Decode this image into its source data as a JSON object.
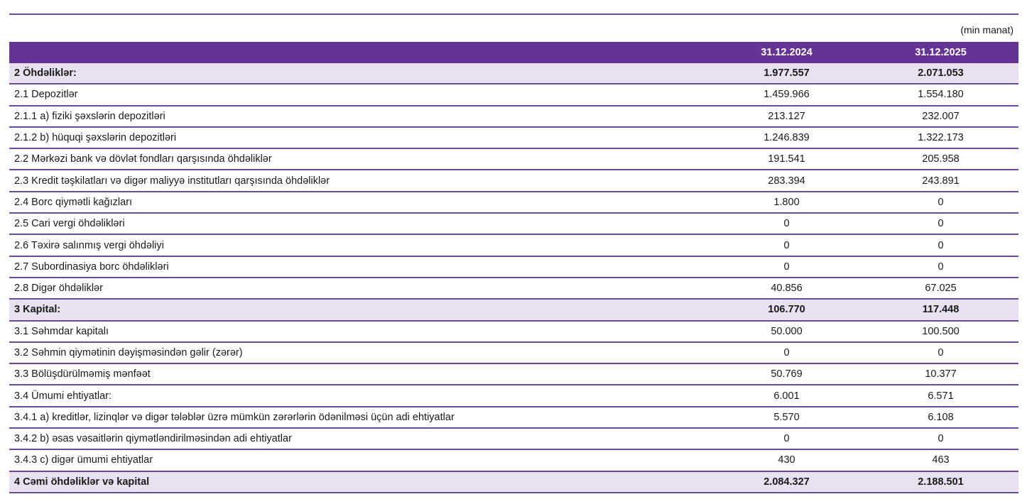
{
  "unit_label": "(min manat)",
  "columns": [
    "",
    "31.12.2024",
    "31.12.2025"
  ],
  "rows": [
    {
      "label": "2 Öhdəliklər:",
      "v2024": "1.977.557",
      "v2025": "2.071.053",
      "bold": true
    },
    {
      "label": "2.1 Depozitlər",
      "v2024": "1.459.966",
      "v2025": "1.554.180"
    },
    {
      "label": "2.1.1 a) fiziki şəxslərin depozitləri",
      "v2024": "213.127",
      "v2025": "232.007"
    },
    {
      "label": "2.1.2 b) hüquqi şəxslərin depozitləri",
      "v2024": "1.246.839",
      "v2025": "1.322.173"
    },
    {
      "label": "2.2 Mərkəzi bank və dövlət fondları qarşısında öhdəliklər",
      "v2024": "191.541",
      "v2025": "205.958"
    },
    {
      "label": "2.3 Kredit təşkilatları və digər maliyyə institutları qarşısında öhdəliklər",
      "v2024": "283.394",
      "v2025": "243.891"
    },
    {
      "label": "2.4 Borc qiymətli kağızları",
      "v2024": "1.800",
      "v2025": "0"
    },
    {
      "label": "2.5 Cari vergi öhdəlikləri",
      "v2024": "0",
      "v2025": "0"
    },
    {
      "label": "2.6 Təxirə salınmış vergi öhdəliyi",
      "v2024": "0",
      "v2025": "0"
    },
    {
      "label": "2.7 Subordinasiya borc öhdəlikləri",
      "v2024": "0",
      "v2025": "0"
    },
    {
      "label": "2.8 Digər öhdəliklər",
      "v2024": "40.856",
      "v2025": "67.025"
    },
    {
      "label": "3 Kapital:",
      "v2024": "106.770",
      "v2025": "117.448",
      "bold": true
    },
    {
      "label": "3.1 Səhmdar kapitalı",
      "v2024": "50.000",
      "v2025": "100.500"
    },
    {
      "label": "3.2 Səhmin qiymətinin dəyişməsindən gəlir (zərər)",
      "v2024": "0",
      "v2025": "0"
    },
    {
      "label": "3.3 Bölüşdürülməmiş mənfəət",
      "v2024": "50.769",
      "v2025": "10.377"
    },
    {
      "label": "3.4 Ümumi ehtiyatlar:",
      "v2024": "6.001",
      "v2025": "6.571"
    },
    {
      "label": "3.4.1 a) kreditlər, lizinqlər və digər tələblər üzrə mümkün zərərlərin ödənilməsi üçün adi ehtiyatlar",
      "v2024": "5.570",
      "v2025": "6.108"
    },
    {
      "label": "3.4.2 b) əsas vəsaitlərin qiymətləndirilməsindən adi ehtiyatlar",
      "v2024": "0",
      "v2025": "0"
    },
    {
      "label": "3.4.3 c) digər ümumi ehtiyatlar",
      "v2024": "430",
      "v2025": "463"
    },
    {
      "label": "4 Cəmi öhdəliklər və kapital",
      "v2024": "2.084.327",
      "v2025": "2.188.501",
      "bold": true
    }
  ],
  "colors": {
    "header_bg": "#643393",
    "section_bg": "#e7e1f0",
    "rule": "#6b4a9c"
  }
}
